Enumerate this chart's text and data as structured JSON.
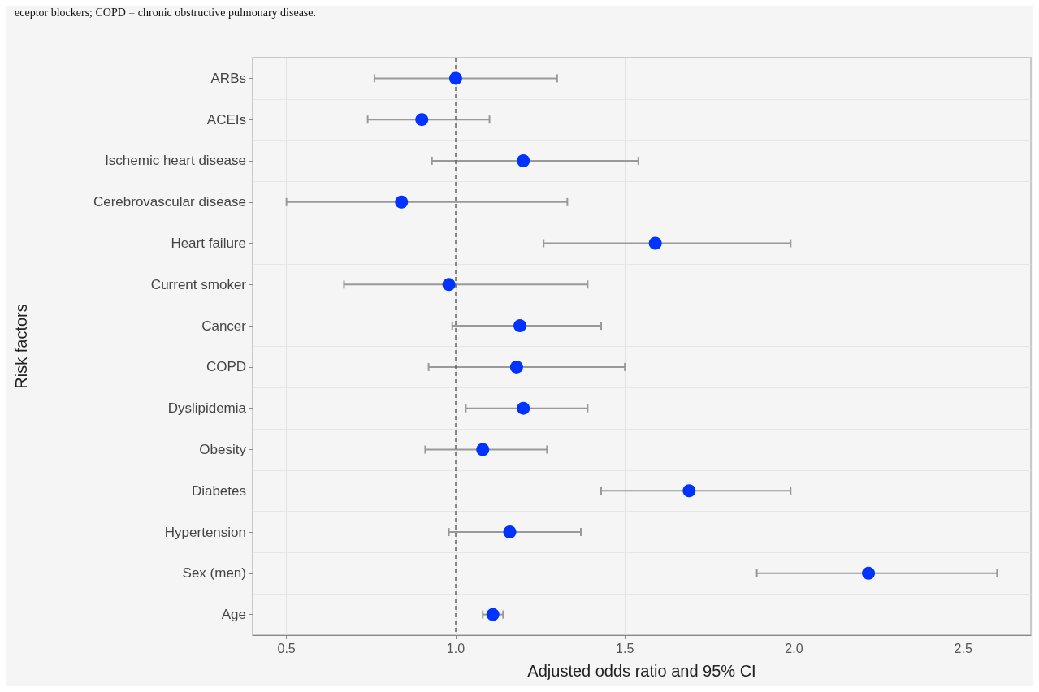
{
  "chart_data": {
    "type": "scatter",
    "orientation": "horizontal",
    "xlabel": "Adjusted odds ratio and 95% CI",
    "ylabel": "Risk factors",
    "annotations": [
      "eceptor blockers; COPD = chronic obstructive pulmonary disease."
    ],
    "categories": [
      "ARBs",
      "ACEIs",
      "Ischemic heart disease",
      "Cerebrovascular disease",
      "Heart failure",
      "Current smoker",
      "Cancer",
      "COPD",
      "Dyslipidemia",
      "Obesity",
      "Diabetes",
      "Hypertension",
      "Sex (men)",
      "Age"
    ],
    "values": [
      1.0,
      0.9,
      1.2,
      0.84,
      1.59,
      0.98,
      1.19,
      1.18,
      1.2,
      1.08,
      1.69,
      1.16,
      2.22,
      1.11
    ],
    "errors": [
      [
        0.76,
        1.3
      ],
      [
        0.74,
        1.1
      ],
      [
        0.93,
        1.54
      ],
      [
        0.5,
        1.33
      ],
      [
        1.26,
        1.99
      ],
      [
        0.67,
        1.39
      ],
      [
        0.99,
        1.43
      ],
      [
        0.92,
        1.5
      ],
      [
        1.03,
        1.39
      ],
      [
        0.91,
        1.27
      ],
      [
        1.43,
        1.99
      ],
      [
        0.98,
        1.37
      ],
      [
        1.89,
        2.6
      ],
      [
        1.08,
        1.14
      ]
    ],
    "color": "#0033ff",
    "marker": "circle",
    "xlim": [
      0.4,
      2.7
    ],
    "xticks": [
      {
        "value": 0.5,
        "label": "0.5"
      },
      {
        "value": 1.0,
        "label": "1.0"
      },
      {
        "value": 1.5,
        "label": "1.5"
      },
      {
        "value": 2.0,
        "label": "2.0"
      },
      {
        "value": 2.5,
        "label": "2.5"
      }
    ],
    "ref_lines": [
      {
        "axis": "x",
        "value": 1.0,
        "color": "#666666",
        "line_style": "dashed"
      }
    ],
    "grid": true
  }
}
